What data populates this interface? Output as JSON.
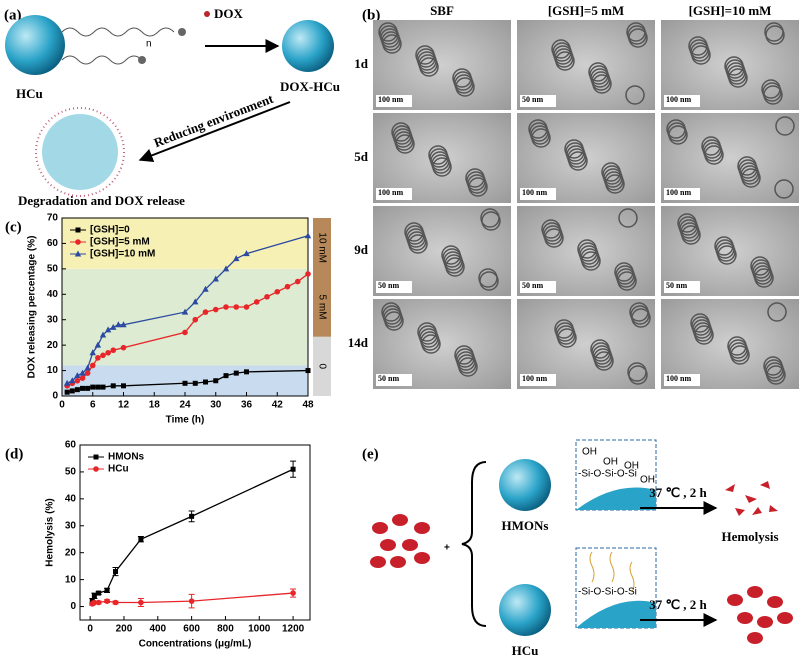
{
  "panel_a": {
    "label": "(a)",
    "dox": "DOX",
    "n": "n",
    "hcu": "HCu",
    "dox_hcu": "DOX-HCu",
    "arrow": "Reducing environment",
    "caption": "Degradation and DOX release"
  },
  "panel_b": {
    "label": "(b)",
    "columns": [
      "SBF",
      "[GSH]=5 mM",
      "[GSH]=10 mM"
    ],
    "rows": [
      "1d",
      "5d",
      "9d",
      "14d"
    ],
    "scales": [
      [
        "100 nm",
        "50 nm",
        "100 nm"
      ],
      [
        "100 nm",
        "100 nm",
        "100 nm"
      ],
      [
        "50 nm",
        "50 nm",
        "50 nm"
      ],
      [
        "50 nm",
        "100 nm",
        "100 nm"
      ]
    ]
  },
  "panel_e": {
    "label": "(e)",
    "plus": "+",
    "hmons": "HMONs",
    "hcu": "HCu",
    "condition_top": "37 ℃ , 2 h",
    "condition_bottom": "37 ℃ , 2 h",
    "hemolysis": "Hemolysis",
    "inset_top": [
      "OH",
      "OH",
      "OH",
      "OH",
      "-Si-O-Si-O-Si"
    ],
    "inset_bottom": [
      "-Si-O-Si-O-Si"
    ]
  },
  "chart_data": [
    {
      "type": "line",
      "label": "(c)",
      "xlabel": "Time (h)",
      "ylabel": "DOX releasing percentage (%)",
      "xlim": [
        0,
        48
      ],
      "xticks": [
        0,
        6,
        12,
        18,
        24,
        30,
        36,
        42,
        48
      ],
      "ylim": [
        0,
        70
      ],
      "yticks": [
        0,
        10,
        20,
        30,
        40,
        50,
        60,
        70
      ],
      "legend": "upper left",
      "bands": [
        {
          "from": 0,
          "to": 12,
          "color": "#c9dcef"
        },
        {
          "from": 12,
          "to": 50,
          "color": "#dcebd2"
        },
        {
          "from": 50,
          "to": 70,
          "color": "#f6f0b4"
        }
      ],
      "strip_labels": [
        "10 mM",
        "5 mM",
        "0"
      ],
      "series": [
        {
          "name": "[GSH]=0",
          "color": "#000000",
          "marker": "square",
          "x": [
            1,
            2,
            3,
            4,
            5,
            6,
            7,
            8,
            10,
            12,
            24,
            26,
            28,
            30,
            32,
            34,
            36,
            48
          ],
          "values": [
            1.5,
            2,
            2.5,
            3,
            3,
            3.5,
            3.5,
            3.5,
            4,
            4,
            5,
            5,
            5.5,
            6,
            8,
            9,
            9.5,
            10
          ]
        },
        {
          "name": "[GSH]=5 mM",
          "color": "#e8262a",
          "marker": "circle",
          "x": [
            1,
            2,
            3,
            4,
            5,
            6,
            7,
            8,
            9,
            10,
            12,
            24,
            26,
            28,
            30,
            32,
            34,
            36,
            38,
            40,
            42,
            44,
            46,
            48
          ],
          "values": [
            4,
            5,
            6,
            7,
            9,
            12,
            15,
            16,
            17,
            18,
            19,
            25,
            30,
            33,
            34,
            35,
            35,
            35,
            37,
            39,
            41,
            43,
            45,
            48
          ]
        },
        {
          "name": "[GSH]=10 mM",
          "color": "#2b4aa0",
          "marker": "triangle",
          "x": [
            1,
            2,
            3,
            4,
            5,
            6,
            7,
            8,
            9,
            10,
            11,
            12,
            24,
            26,
            28,
            30,
            32,
            34,
            36,
            48
          ],
          "values": [
            5,
            6,
            8,
            9,
            11,
            17,
            20,
            24,
            26,
            27,
            28,
            28,
            33,
            37,
            42,
            46,
            50,
            54,
            56,
            63
          ]
        }
      ]
    },
    {
      "type": "errorbar",
      "label": "(d)",
      "xlabel": "Concentrations (μg/mL)",
      "ylabel": "Hemolysis (%)",
      "xlim": [
        -60,
        1300
      ],
      "xticks": [
        0,
        200,
        400,
        600,
        800,
        1000,
        1200
      ],
      "ylim": [
        -5,
        60
      ],
      "yticks": [
        0,
        10,
        20,
        30,
        40,
        50,
        60
      ],
      "legend": "upper left",
      "series": [
        {
          "name": "HMONs",
          "color": "#000000",
          "marker": "square",
          "x": [
            12.5,
            25,
            50,
            100,
            150,
            300,
            600,
            1200
          ],
          "values": [
            2,
            4,
            5,
            6,
            13,
            25,
            33.5,
            51
          ],
          "errors": [
            1,
            1,
            0.5,
            0.8,
            1.5,
            1,
            2,
            3
          ]
        },
        {
          "name": "HCu",
          "color": "#e8262a",
          "marker": "circle",
          "x": [
            12.5,
            25,
            50,
            100,
            150,
            300,
            600,
            1200
          ],
          "values": [
            1,
            1.5,
            1.5,
            2,
            1.5,
            1.5,
            2,
            5
          ],
          "errors": [
            0.5,
            0.5,
            0.5,
            0.5,
            0.5,
            1.5,
            2.5,
            1.5
          ]
        }
      ]
    }
  ]
}
